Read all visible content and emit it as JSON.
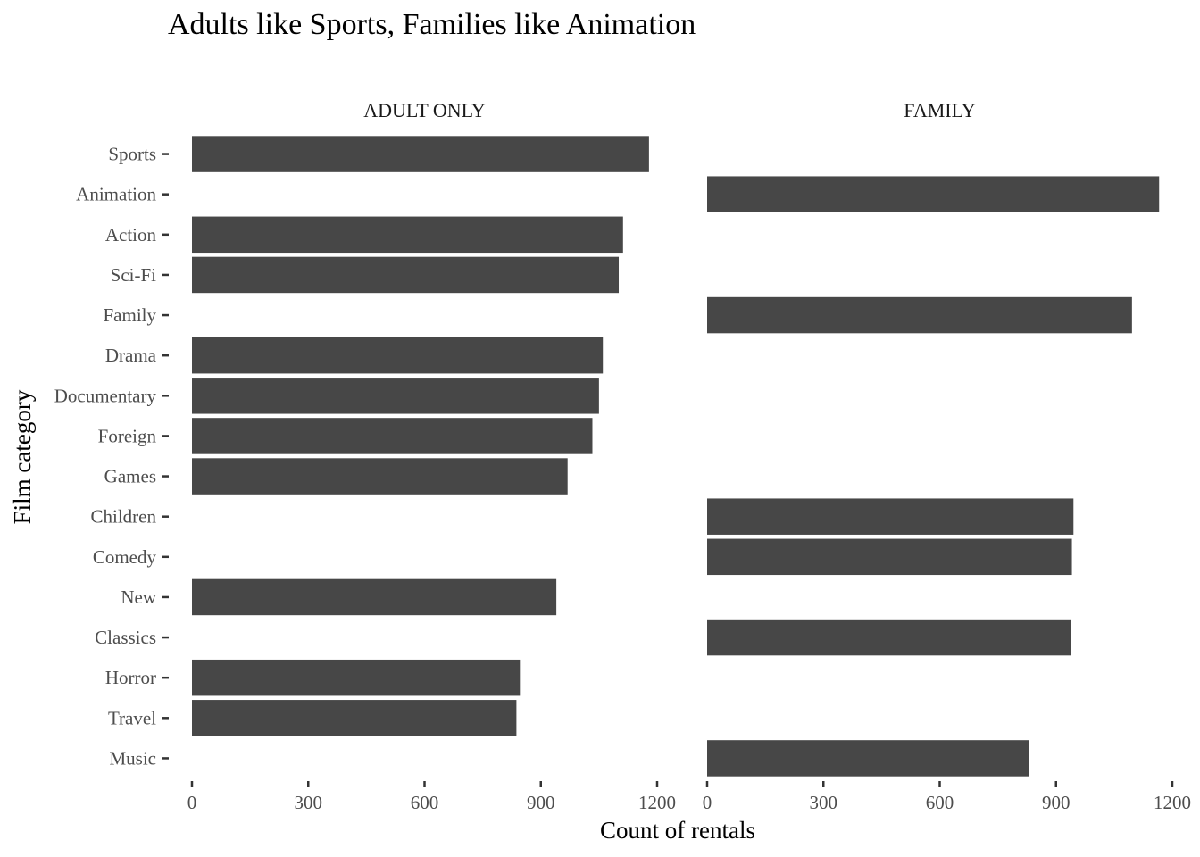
{
  "chart_data": {
    "type": "bar",
    "orientation": "horizontal",
    "title": "Adults like Sports, Families like Animation",
    "xlabel": "Count of rentals",
    "ylabel": "Film category",
    "xlim": [
      0,
      1200
    ],
    "xticks": [
      0,
      300,
      600,
      900,
      1200
    ],
    "grid": false,
    "categories": [
      "Sports",
      "Animation",
      "Action",
      "Sci-Fi",
      "Family",
      "Drama",
      "Documentary",
      "Foreign",
      "Games",
      "Children",
      "Comedy",
      "New",
      "Classics",
      "Horror",
      "Travel",
      "Music"
    ],
    "facets": [
      {
        "name": "ADULT ONLY",
        "values": [
          1179,
          null,
          1112,
          1101,
          null,
          1060,
          1050,
          1033,
          969,
          null,
          null,
          940,
          null,
          846,
          837,
          null
        ]
      },
      {
        "name": "FAMILY",
        "values": [
          null,
          1166,
          null,
          null,
          1096,
          null,
          null,
          null,
          null,
          945,
          941,
          null,
          939,
          null,
          null,
          830
        ]
      }
    ]
  }
}
